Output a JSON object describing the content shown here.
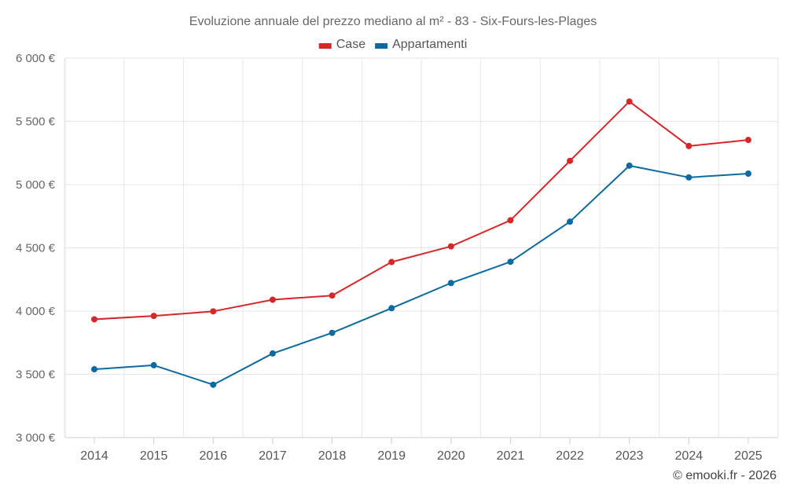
{
  "chart_data": {
    "type": "line",
    "title": "Evoluzione annuale del prezzo mediano al m² - 83 - Six-Fours-les-Plages",
    "x": [
      "2014",
      "2015",
      "2016",
      "2017",
      "2018",
      "2019",
      "2020",
      "2021",
      "2022",
      "2023",
      "2024",
      "2025"
    ],
    "series": [
      {
        "name": "Case",
        "color": "#d62728",
        "values": [
          3935,
          3962,
          3998,
          4090,
          4123,
          4388,
          4512,
          4718,
          5188,
          5657,
          5305,
          5353
        ]
      },
      {
        "name": "Appartamenti",
        "color": "#0a6aa1",
        "values": [
          3540,
          3572,
          3418,
          3665,
          3828,
          4023,
          4222,
          4390,
          4707,
          5150,
          5057,
          5087
        ]
      }
    ],
    "ylim": [
      3000,
      6000
    ],
    "yticks": [
      3000,
      3500,
      4000,
      4500,
      5000,
      5500,
      6000
    ],
    "ytick_labels": [
      "3 000 €",
      "3 500 €",
      "4 000 €",
      "4 500 €",
      "5 000 €",
      "5 500 €",
      "6 000 €"
    ],
    "legend_position": "top-center",
    "grid": true
  },
  "credit": "© emooki.fr - 2026"
}
